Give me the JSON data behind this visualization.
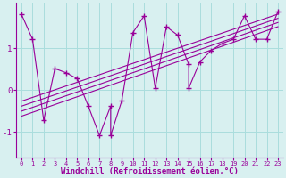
{
  "bg_color": "#d8f0f0",
  "grid_color": "#aadddd",
  "line_color": "#990099",
  "xlabel": "Windchill (Refroidissement éolien,°C)",
  "xlim": [
    -0.5,
    23.5
  ],
  "ylim": [
    -1.6,
    2.1
  ],
  "yticks": [
    -1,
    0,
    1
  ],
  "xticks": [
    0,
    1,
    2,
    3,
    4,
    5,
    6,
    7,
    8,
    9,
    10,
    11,
    12,
    13,
    14,
    15,
    16,
    17,
    18,
    19,
    20,
    21,
    22,
    23
  ],
  "series": [
    [
      0,
      1.82
    ],
    [
      1,
      1.22
    ],
    [
      2,
      -0.72
    ],
    [
      3,
      0.52
    ],
    [
      4,
      0.42
    ],
    [
      5,
      0.28
    ],
    [
      6,
      -0.38
    ],
    [
      7,
      -1.08
    ],
    [
      8,
      -0.38
    ],
    [
      8,
      -1.08
    ],
    [
      9,
      -0.25
    ],
    [
      10,
      1.38
    ],
    [
      11,
      1.78
    ],
    [
      12,
      0.05
    ],
    [
      13,
      1.52
    ],
    [
      14,
      1.32
    ],
    [
      15,
      0.62
    ],
    [
      15,
      0.05
    ],
    [
      16,
      0.68
    ],
    [
      17,
      0.95
    ],
    [
      18,
      1.12
    ],
    [
      19,
      1.22
    ],
    [
      20,
      1.78
    ],
    [
      21,
      1.22
    ],
    [
      22,
      1.22
    ],
    [
      23,
      1.88
    ]
  ],
  "regression_lines": [
    {
      "x0": 0,
      "y0": -0.62,
      "x1": 23,
      "y1": 1.52
    },
    {
      "x0": 0,
      "y0": -0.5,
      "x1": 23,
      "y1": 1.62
    },
    {
      "x0": 0,
      "y0": -0.38,
      "x1": 23,
      "y1": 1.72
    },
    {
      "x0": 0,
      "y0": -0.26,
      "x1": 23,
      "y1": 1.82
    }
  ],
  "ylabel_fontsize": 7,
  "xlabel_fontsize": 6.5,
  "xtick_fontsize": 5.0,
  "ytick_fontsize": 6.5
}
